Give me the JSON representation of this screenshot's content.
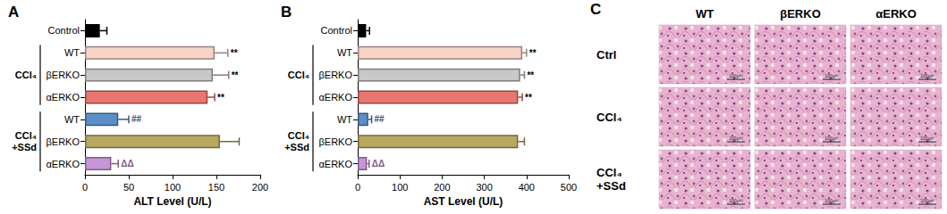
{
  "chart_data": [
    {
      "type": "bar",
      "title": "A",
      "orientation": "horizontal",
      "categories": [
        "Control",
        "WT",
        "βERKO",
        "αERKO",
        "WT",
        "βERKO",
        "αERKO"
      ],
      "groups": [
        {
          "label": "CCl₄",
          "from": 1,
          "to": 3
        },
        {
          "label": "CCl₄\n+SSd",
          "from": 4,
          "to": 6
        }
      ],
      "values": [
        17,
        148,
        146,
        140,
        38,
        154,
        30
      ],
      "errors": [
        8,
        15,
        18,
        8,
        12,
        22,
        8
      ],
      "annotations": [
        null,
        "**",
        "**",
        "**",
        "##",
        null,
        "ΔΔ"
      ],
      "colors": [
        "#000000",
        "#f8d3c8",
        "#c8c8c8",
        "#e8766f",
        "#5b8ec8",
        "#b8a860",
        "#c896d8"
      ],
      "xlabel": "ALT Level (U/L)",
      "xlim": [
        0,
        200
      ],
      "xticks": [
        0,
        50,
        100,
        150,
        200
      ],
      "grid": false
    },
    {
      "type": "bar",
      "title": "B",
      "orientation": "horizontal",
      "categories": [
        "Control",
        "WT",
        "βERKO",
        "αERKO",
        "WT",
        "βERKO",
        "αERKO"
      ],
      "groups": [
        {
          "label": "CCl₄",
          "from": 1,
          "to": 3
        },
        {
          "label": "CCl₄\n+SSd",
          "from": 4,
          "to": 6
        }
      ],
      "values": [
        20,
        390,
        385,
        380,
        25,
        380,
        22
      ],
      "errors": [
        8,
        10,
        10,
        10,
        8,
        15,
        5
      ],
      "annotations": [
        null,
        "**",
        "**",
        "**",
        "##",
        null,
        "ΔΔ"
      ],
      "colors": [
        "#000000",
        "#f8d3c8",
        "#c8c8c8",
        "#e8766f",
        "#5b8ec8",
        "#b8a860",
        "#c896d8"
      ],
      "xlabel": "AST Level (U/L)",
      "xlim": [
        0,
        500
      ],
      "xticks": [
        0,
        100,
        200,
        300,
        400,
        500
      ],
      "grid": false
    }
  ],
  "image_panel": {
    "title": "C",
    "columns": [
      "WT",
      "βERKO",
      "αERKO"
    ],
    "rows": [
      "Ctrl",
      "CCl₄",
      "CCl₄\n+SSd"
    ],
    "scale_bar": "100μm"
  }
}
